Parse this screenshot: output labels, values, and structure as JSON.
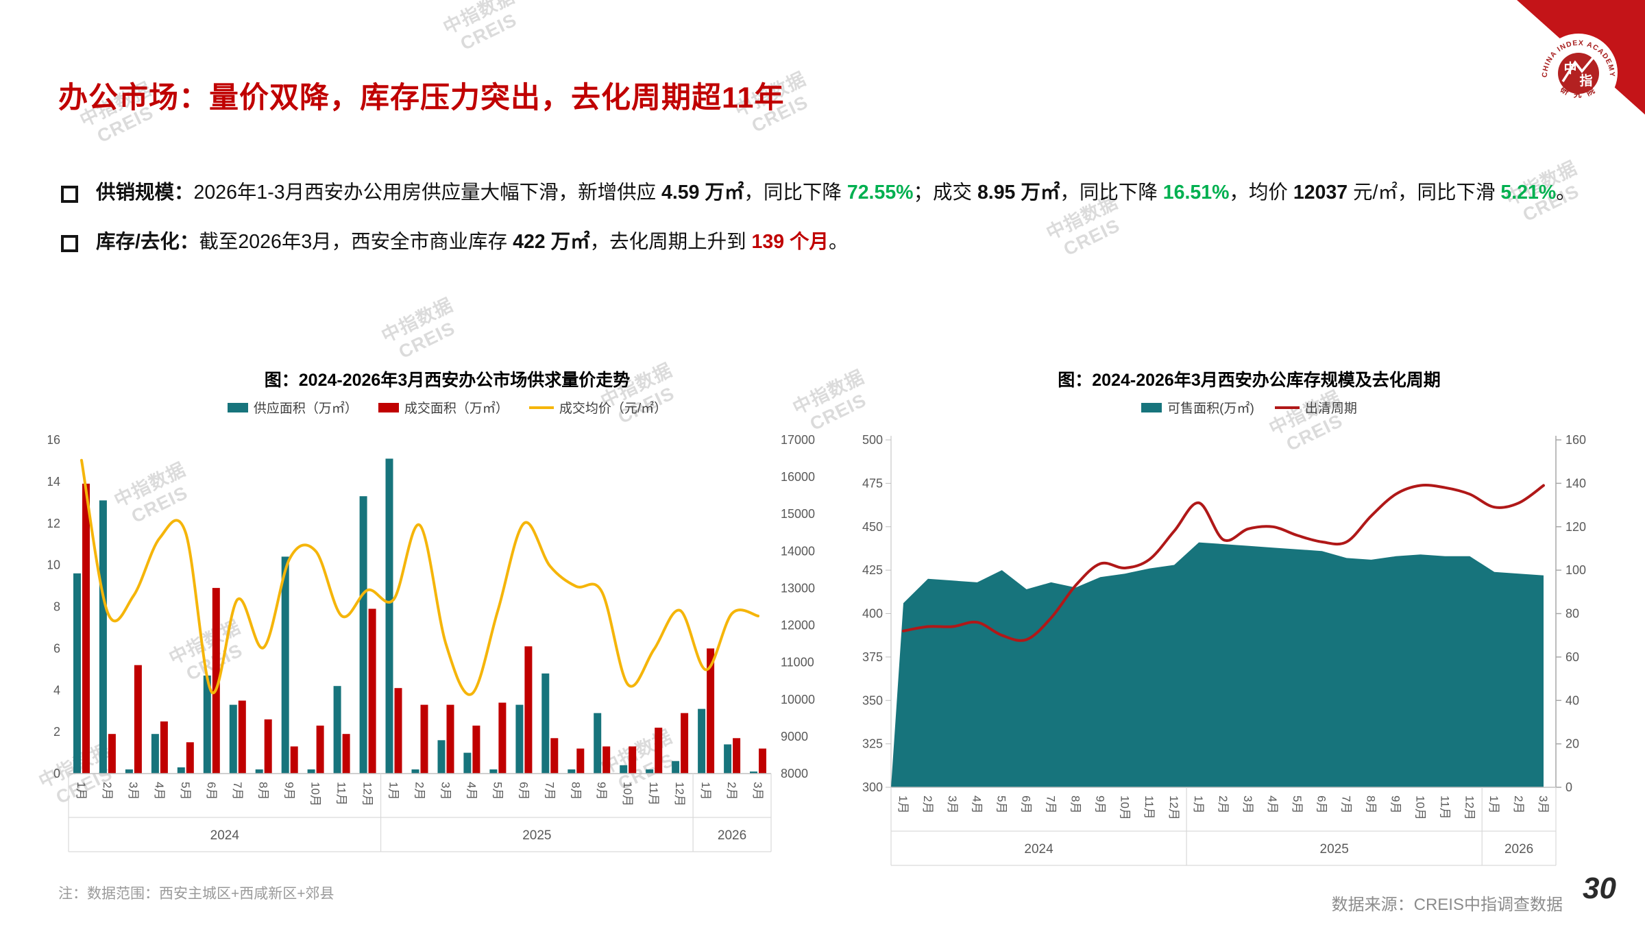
{
  "slide": {
    "title": "办公市场：量价双降，库存压力突出，去化周期超11年",
    "bullets": [
      {
        "segments": [
          {
            "text": "供销规模：",
            "bold": true
          },
          {
            "text": "2026年1-3月西安办公用房供应量大幅下滑，新增供应 "
          },
          {
            "text": "4.59 万㎡",
            "bold": true
          },
          {
            "text": "，同比下降 "
          },
          {
            "text": "72.55%",
            "bold": true,
            "color": "green"
          },
          {
            "text": "；成交 "
          },
          {
            "text": "8.95 万㎡",
            "bold": true
          },
          {
            "text": "，同比下降 "
          },
          {
            "text": "16.51%",
            "bold": true,
            "color": "green"
          },
          {
            "text": "，均价 "
          },
          {
            "text": "12037",
            "bold": true
          },
          {
            "text": " 元/㎡，同比下滑 "
          },
          {
            "text": "5.21%",
            "bold": true,
            "color": "green"
          },
          {
            "text": "。"
          }
        ]
      },
      {
        "segments": [
          {
            "text": "库存/去化：",
            "bold": true
          },
          {
            "text": "截至2026年3月，西安全市商业库存 "
          },
          {
            "text": "422 万㎡",
            "bold": true
          },
          {
            "text": "，去化周期上升到 "
          },
          {
            "text": "139 个月",
            "bold": true,
            "color": "red"
          },
          {
            "text": "。"
          }
        ]
      }
    ],
    "note": "注：数据范围：西安主城区+西咸新区+郊县",
    "source": "数据来源：CREIS中指调查数据",
    "page_number": "30",
    "watermark_line1": "中指数据",
    "watermark_line2": "CREIS",
    "logo": {
      "org_en": "CHINA INDEX ACADEMY",
      "org_zh": "中指",
      "org_suffix": "研 究 院"
    }
  },
  "colors": {
    "accent_red": "#c00000",
    "teal": "#17747c",
    "bar_red": "#c00000",
    "line_red": "#b01818",
    "gold": "#f5b50a",
    "green": "#00b050"
  },
  "chart_data": [
    {
      "type": "bar+line",
      "title": "图：2024-2026年3月西安办公市场供求量价走势",
      "months": [
        "1月",
        "2月",
        "3月",
        "4月",
        "5月",
        "6月",
        "7月",
        "8月",
        "9月",
        "10月",
        "11月",
        "12月",
        "1月",
        "2月",
        "3月",
        "4月",
        "5月",
        "6月",
        "7月",
        "8月",
        "9月",
        "10月",
        "11月",
        "12月",
        "1月",
        "2月",
        "3月"
      ],
      "year_groups": [
        {
          "label": "2024",
          "span": 12
        },
        {
          "label": "2025",
          "span": 12
        },
        {
          "label": "2026",
          "span": 3
        }
      ],
      "left_axis": {
        "min": 0,
        "max": 16,
        "step": 2
      },
      "right_axis": {
        "min": 8000,
        "max": 17000,
        "step": 1000
      },
      "grid": false,
      "legend_position": "top",
      "series": [
        {
          "name": "供应面积（万㎡）",
          "type": "bar",
          "axis": "left",
          "color": "#17747c",
          "values": [
            9.6,
            13.1,
            0.2,
            1.9,
            0.3,
            4.7,
            3.3,
            0.2,
            10.4,
            0.2,
            4.2,
            13.3,
            15.1,
            0.2,
            1.6,
            1.0,
            0.2,
            3.3,
            4.8,
            0.2,
            2.9,
            0.4,
            0.2,
            0.6,
            3.1,
            1.4,
            0.1
          ]
        },
        {
          "name": "成交面积（万㎡）",
          "type": "bar",
          "axis": "left",
          "color": "#c00000",
          "values": [
            13.9,
            1.9,
            5.2,
            2.5,
            1.5,
            8.9,
            3.5,
            2.6,
            1.3,
            2.3,
            1.9,
            7.9,
            4.1,
            3.3,
            3.3,
            2.3,
            3.4,
            6.1,
            1.7,
            1.2,
            1.3,
            1.3,
            2.2,
            2.9,
            6.0,
            1.7,
            1.2
          ]
        },
        {
          "name": "成交均价（元/㎡）",
          "type": "line",
          "axis": "right",
          "color": "#f5b50a",
          "values": [
            16450,
            12350,
            12800,
            14350,
            14500,
            10200,
            12700,
            11400,
            13800,
            14000,
            12250,
            12950,
            12700,
            14700,
            11500,
            10150,
            12400,
            14750,
            13600,
            13050,
            12900,
            10400,
            11350,
            12400,
            10800,
            12320,
            12250
          ]
        }
      ]
    },
    {
      "type": "area+line",
      "title": "图：2024-2026年3月西安办公库存规模及去化周期",
      "months": [
        "1月",
        "2月",
        "3月",
        "4月",
        "5月",
        "6月",
        "7月",
        "8月",
        "9月",
        "10月",
        "11月",
        "12月",
        "1月",
        "2月",
        "3月",
        "4月",
        "5月",
        "6月",
        "7月",
        "8月",
        "9月",
        "10月",
        "11月",
        "12月",
        "1月",
        "2月",
        "3月"
      ],
      "year_groups": [
        {
          "label": "2024",
          "span": 12
        },
        {
          "label": "2025",
          "span": 12
        },
        {
          "label": "2026",
          "span": 3
        }
      ],
      "left_axis": {
        "min": 300,
        "max": 500,
        "step": 25
      },
      "right_axis": {
        "min": 0,
        "max": 160,
        "step": 20
      },
      "grid": false,
      "legend_position": "top",
      "series": [
        {
          "name": "可售面积(万㎡)",
          "type": "area",
          "axis": "left",
          "color": "#17747c",
          "values": [
            406,
            420,
            419,
            418,
            425,
            414,
            418,
            415,
            421,
            423,
            426,
            428,
            441,
            440,
            439,
            438,
            437,
            436,
            432,
            431,
            433,
            434,
            433,
            433,
            424,
            423,
            422
          ]
        },
        {
          "name": "出清周期",
          "type": "line",
          "axis": "right",
          "color": "#b01818",
          "values": [
            72,
            74,
            74,
            76,
            70,
            68,
            78,
            93,
            103,
            101,
            105,
            118,
            131,
            114,
            119,
            120,
            116,
            113,
            113,
            125,
            135,
            139,
            138,
            135,
            129,
            131,
            139
          ]
        }
      ]
    }
  ]
}
